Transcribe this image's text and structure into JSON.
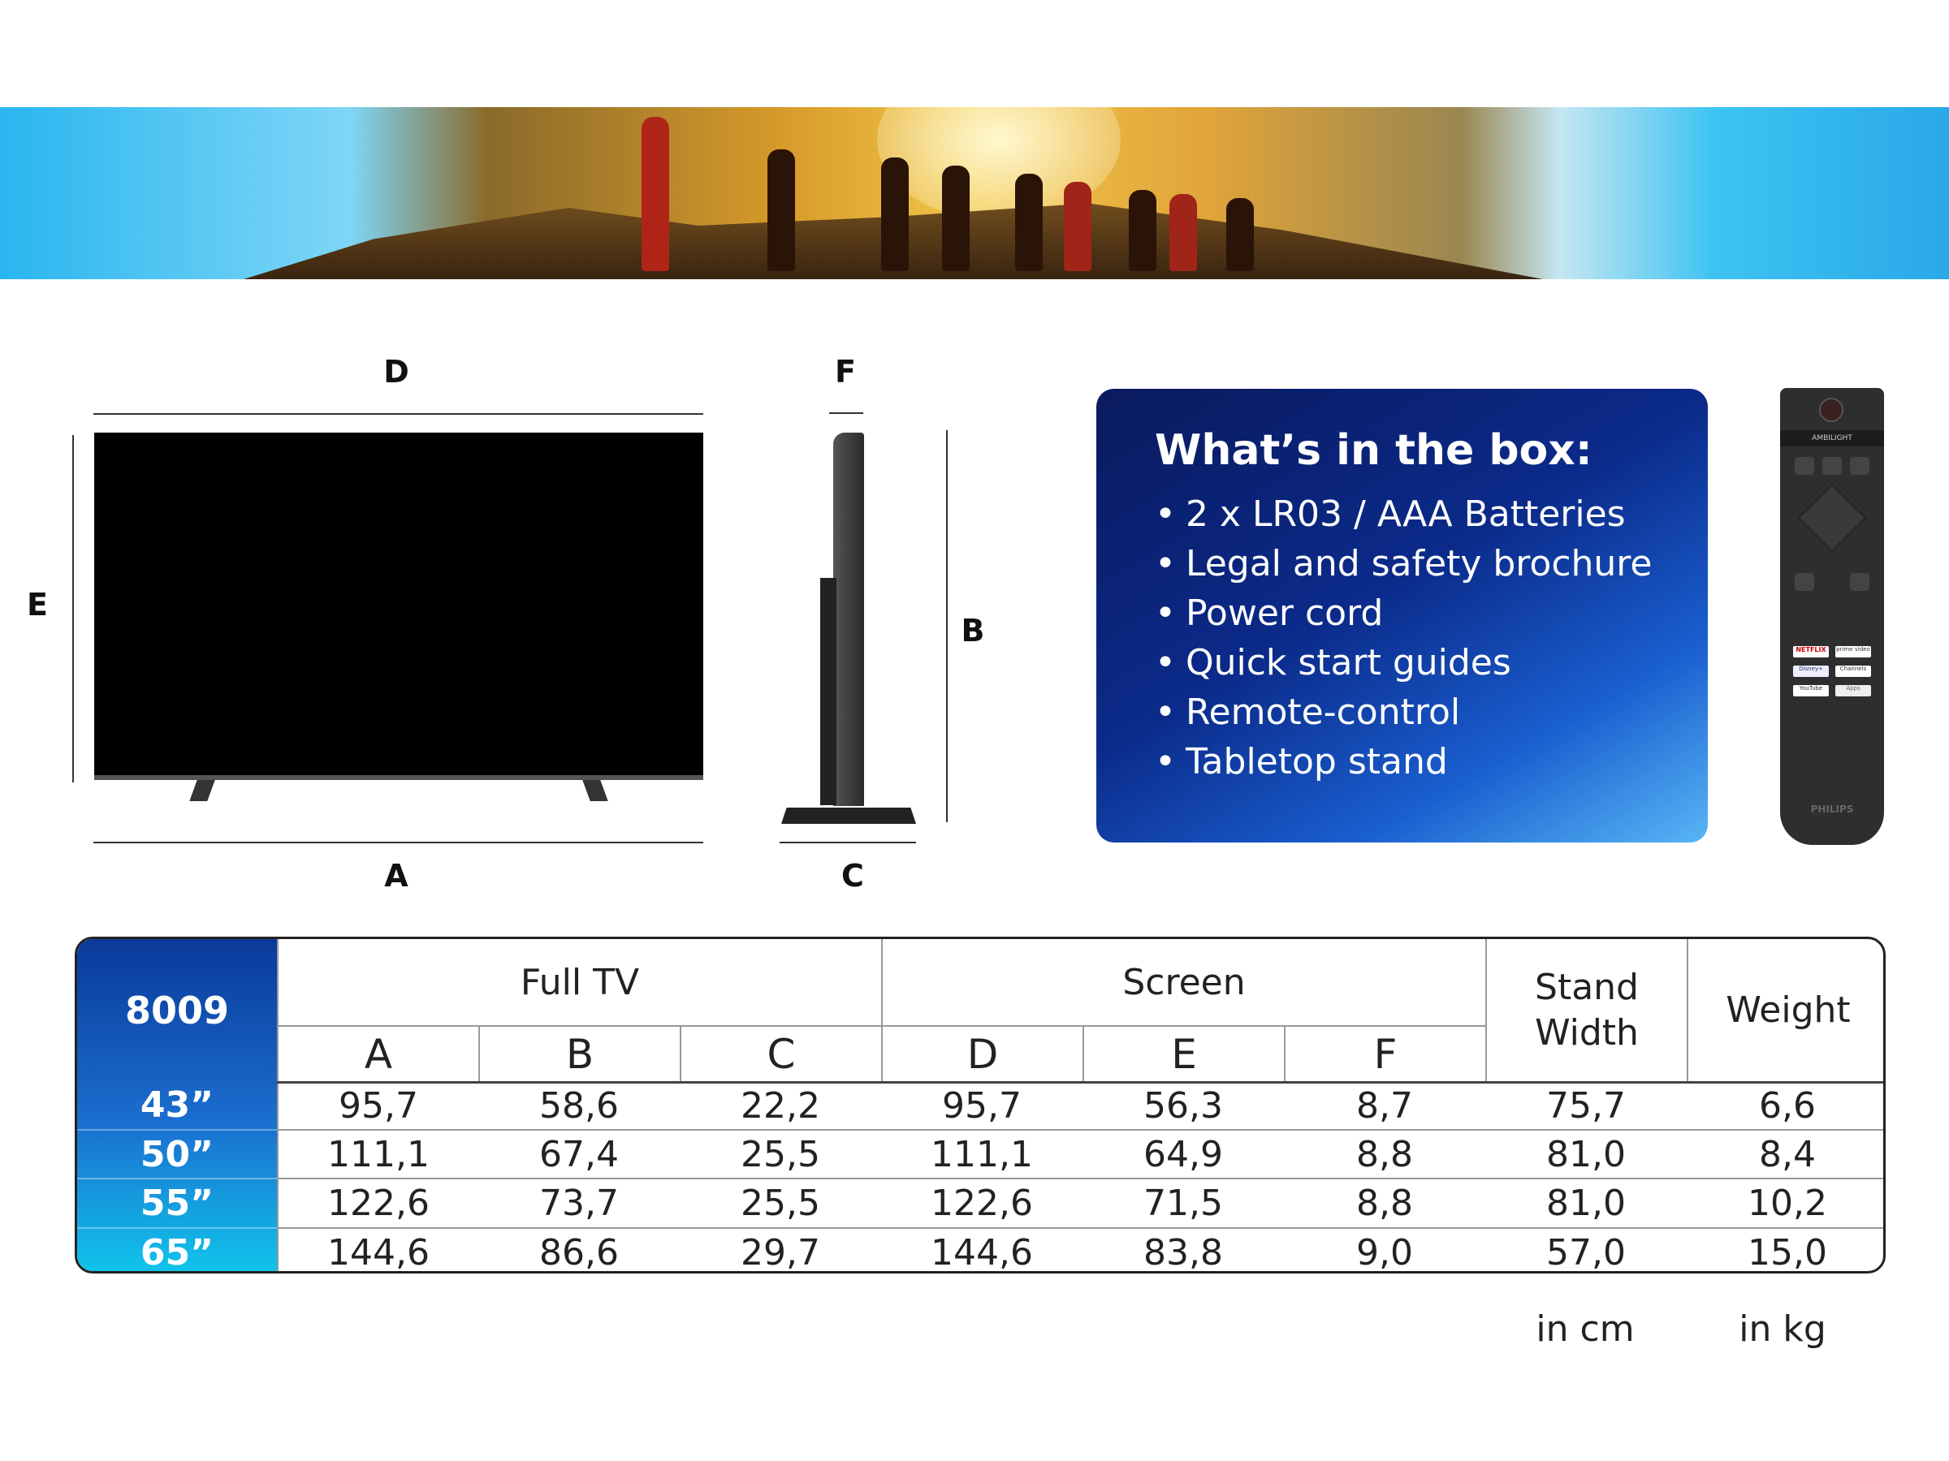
{
  "dimension_labels": {
    "D": "D",
    "E": "E",
    "A": "A",
    "F": "F",
    "B": "B",
    "C": "C"
  },
  "box": {
    "title": "What’s in the box:",
    "items": [
      "2 x LR03 / AAA Batteries",
      "Legal and safety brochure",
      "Power cord",
      "Quick start guides",
      "Remote-control",
      "Tabletop stand"
    ]
  },
  "remote": {
    "top_label": "AMBILIGHT",
    "brand": "PHILIPS",
    "apps": [
      "NETFLIX",
      "prime video",
      "Disney+",
      "Channels",
      "YouTube",
      "Apps"
    ]
  },
  "table": {
    "model": "8009",
    "groups": [
      "Full TV",
      "Screen",
      "Stand Width",
      "Weight"
    ],
    "subheaders": [
      "A",
      "B",
      "C",
      "D",
      "E",
      "F"
    ],
    "rows": [
      {
        "size": "43”",
        "values": [
          "95,7",
          "58,6",
          "22,2",
          "95,7",
          "56,3",
          "8,7",
          "75,7",
          "6,6"
        ]
      },
      {
        "size": "50”",
        "values": [
          "111,1",
          "67,4",
          "25,5",
          "111,1",
          "64,9",
          "8,8",
          "81,0",
          "8,4"
        ]
      },
      {
        "size": "55”",
        "values": [
          "122,6",
          "73,7",
          "25,5",
          "122,6",
          "71,5",
          "8,8",
          "81,0",
          "10,2"
        ]
      },
      {
        "size": "65”",
        "values": [
          "144,6",
          "86,6",
          "29,7",
          "144,6",
          "83,8",
          "9,0",
          "57,0",
          "15,0"
        ]
      }
    ],
    "units": [
      "in cm",
      "in kg"
    ]
  },
  "colors": {
    "box_blue": "#0b2a8a",
    "accent_cyan": "#10c6ec"
  }
}
